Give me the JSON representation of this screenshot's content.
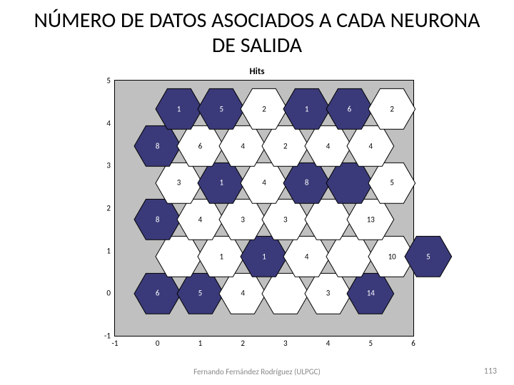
{
  "slide": {
    "title": "NÚMERO DE DATOS ASOCIADOS A CADA NEURONA DE SALIDA"
  },
  "chart": {
    "type": "hex-som-hitmap",
    "title": "Hits",
    "background_color": "#c0c0c0",
    "border_color": "#000000",
    "hex_border_color": "#000000",
    "palette_dark": "#3a3a7a",
    "palette_light": "#ffffff",
    "label_color_on_dark": "#ffffff",
    "label_color_on_light": "#000000",
    "x_ticks": [
      -1,
      0,
      1,
      2,
      3,
      4,
      5,
      6
    ],
    "y_ticks": [
      -1,
      0,
      1,
      2,
      3,
      4,
      5
    ],
    "xlim": [
      -1,
      6
    ],
    "ylim": [
      -1,
      5
    ],
    "tick_fontsize": 11,
    "title_fontsize": 13,
    "label_fontsize": 11,
    "hex_radius_data_units": 0.55,
    "cells": [
      {
        "col": 0,
        "row": 0,
        "value": 6,
        "color": "#3a3a7a"
      },
      {
        "col": 1,
        "row": 0,
        "value": 5,
        "color": "#3a3a7a"
      },
      {
        "col": 2,
        "row": 0,
        "value": 4,
        "color": "#ffffff"
      },
      {
        "col": 3,
        "row": 0,
        "value": "",
        "color": "#ffffff"
      },
      {
        "col": 4,
        "row": 0,
        "value": 3,
        "color": "#ffffff"
      },
      {
        "col": 5,
        "row": 0,
        "value": 14,
        "color": "#3a3a7a"
      },
      {
        "col": 0,
        "row": 1,
        "value": "",
        "color": "#ffffff"
      },
      {
        "col": 1,
        "row": 1,
        "value": 1,
        "color": "#ffffff"
      },
      {
        "col": 2,
        "row": 1,
        "value": 1,
        "color": "#3a3a7a"
      },
      {
        "col": 3,
        "row": 1,
        "value": 4,
        "color": "#ffffff"
      },
      {
        "col": 4,
        "row": 1,
        "value": "",
        "color": "#ffffff"
      },
      {
        "col": 5,
        "row": 1,
        "value": 10,
        "color": "#ffffff"
      },
      {
        "col": 0,
        "row": 2,
        "value": 8,
        "color": "#3a3a7a"
      },
      {
        "col": 1,
        "row": 2,
        "value": 4,
        "color": "#ffffff"
      },
      {
        "col": 2,
        "row": 2,
        "value": 3,
        "color": "#ffffff"
      },
      {
        "col": 3,
        "row": 2,
        "value": 3,
        "color": "#ffffff"
      },
      {
        "col": 4,
        "row": 2,
        "value": "",
        "color": "#ffffff"
      },
      {
        "col": 5,
        "row": 2,
        "value": 13,
        "color": "#ffffff"
      },
      {
        "col": 0,
        "row": 3,
        "value": 3,
        "color": "#ffffff"
      },
      {
        "col": 1,
        "row": 3,
        "value": 1,
        "color": "#3a3a7a"
      },
      {
        "col": 2,
        "row": 3,
        "value": 4,
        "color": "#ffffff"
      },
      {
        "col": 3,
        "row": 3,
        "value": 8,
        "color": "#3a3a7a"
      },
      {
        "col": 4,
        "row": 3,
        "value": "",
        "color": "#3a3a7a"
      },
      {
        "col": 5,
        "row": 3,
        "value": 5,
        "color": "#ffffff"
      },
      {
        "col": 0,
        "row": 4,
        "value": 8,
        "color": "#3a3a7a"
      },
      {
        "col": 1,
        "row": 4,
        "value": 6,
        "color": "#ffffff"
      },
      {
        "col": 2,
        "row": 4,
        "value": 4,
        "color": "#ffffff"
      },
      {
        "col": 3,
        "row": 4,
        "value": 2,
        "color": "#ffffff"
      },
      {
        "col": 4,
        "row": 4,
        "value": 4,
        "color": "#ffffff"
      },
      {
        "col": 5,
        "row": 4,
        "value": 4,
        "color": "#ffffff"
      },
      {
        "col": 0,
        "row": 5,
        "value": 1,
        "color": "#3a3a7a"
      },
      {
        "col": 1,
        "row": 5,
        "value": 5,
        "color": "#3a3a7a"
      },
      {
        "col": 2,
        "row": 5,
        "value": 2,
        "color": "#ffffff"
      },
      {
        "col": 3,
        "row": 5,
        "value": 1,
        "color": "#3a3a7a"
      },
      {
        "col": 4,
        "row": 5,
        "value": 6,
        "color": "#3a3a7a"
      },
      {
        "col": 5,
        "row": 5,
        "value": 2,
        "color": "#ffffff"
      },
      {
        "col": 5.85,
        "row": 1,
        "value": 5,
        "color": "#3a3a7a"
      }
    ]
  },
  "footer": {
    "author": "Fernando Fernández Rodríguez (ULPGC)",
    "page": "113"
  }
}
